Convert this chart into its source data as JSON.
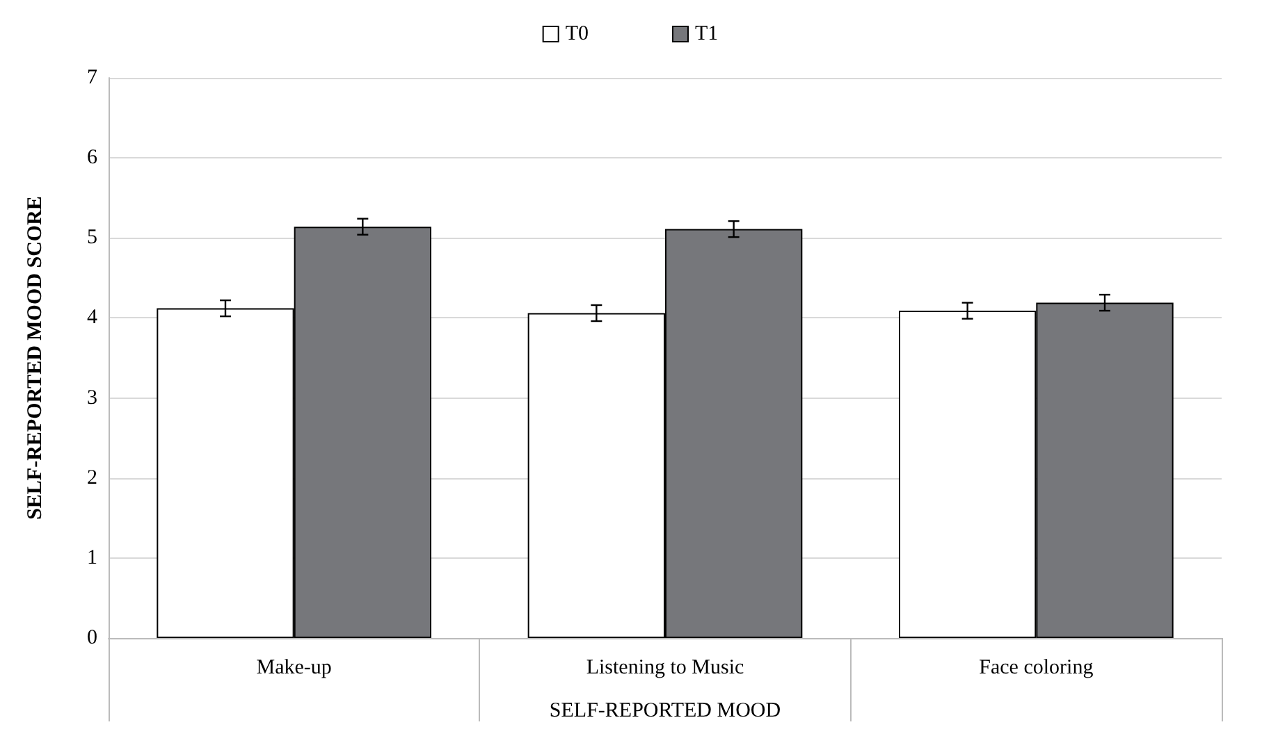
{
  "chart_data": {
    "type": "bar",
    "xlabel": "SELF-REPORTED MOOD",
    "ylabel": "SELF-REPORTED MOOD SCORE",
    "categories": [
      "Make-up",
      "Listening to Music",
      "Face coloring"
    ],
    "series": [
      {
        "name": "T0",
        "color": "#ffffff",
        "values": [
          4.12,
          4.06,
          4.09
        ],
        "errors": [
          0.1,
          0.1,
          0.1
        ]
      },
      {
        "name": "T1",
        "color": "#76777b",
        "values": [
          5.14,
          5.11,
          4.19
        ],
        "errors": [
          0.1,
          0.1,
          0.1
        ]
      }
    ],
    "ylim": [
      0,
      7
    ],
    "yticks": [
      0,
      1,
      2,
      3,
      4,
      5,
      6,
      7
    ],
    "grid": "y",
    "legend": "top"
  }
}
